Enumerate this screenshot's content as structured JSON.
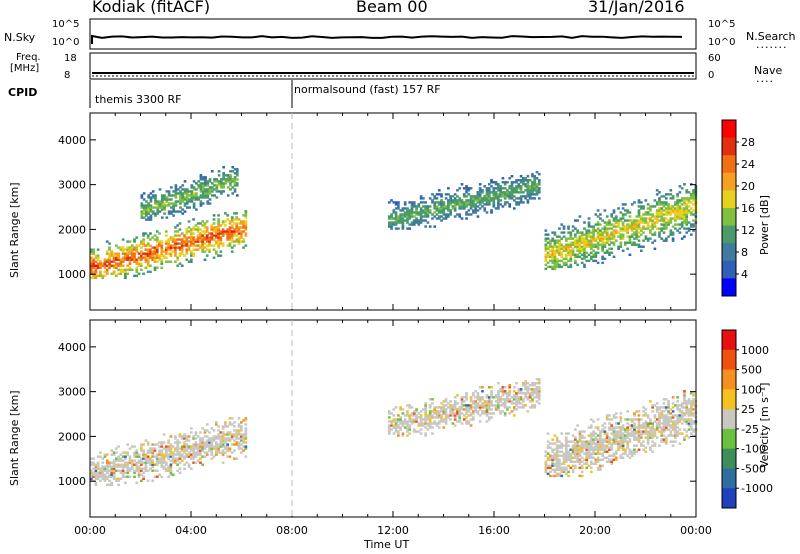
{
  "header": {
    "station": "Kodiak (fitACF)",
    "beam": "Beam 00",
    "date": "31/Jan/2016"
  },
  "top_strip": {
    "left_label": "N.Sky",
    "right_label": "N.Search",
    "left_ticks": [
      "10^5",
      "10^0"
    ],
    "right_ticks": [
      "10^5",
      "10^0"
    ]
  },
  "freq_strip": {
    "left_label_1": "Freq.",
    "left_label_2": "[MHz]",
    "right_label": "Nave",
    "left_ticks": [
      "18",
      "8"
    ],
    "right_ticks": [
      "60",
      "0"
    ]
  },
  "cpid_strip": {
    "label": "CPID",
    "modes": [
      "themis 3300 RF",
      "normalsound (fast) 157 RF"
    ]
  },
  "power_panel": {
    "ylabel": "Slant Range [km]",
    "colorbar_label": "Power [dB]",
    "colorbar_ticks": [
      "28",
      "24",
      "20",
      "16",
      "12",
      "8",
      "4"
    ],
    "colors": [
      "#0000ff",
      "#2f5fb7",
      "#3f7a9f",
      "#4a9a6a",
      "#7fc040",
      "#e8d020",
      "#f5a020",
      "#f07018",
      "#e03010",
      "#ff0000"
    ]
  },
  "velocity_panel": {
    "ylabel": "Slant Range [km]",
    "colorbar_label": "Velocity [m s⁻¹]",
    "colorbar_ticks": [
      "1000",
      "500",
      "100",
      "25",
      "-25",
      "-100",
      "-500",
      "-1000"
    ],
    "colors": [
      "#2040c0",
      "#2f6fa0",
      "#3c8f5a",
      "#6cc040",
      "#c8c8c0",
      "#f5c020",
      "#f59020",
      "#f05010",
      "#e81010"
    ]
  },
  "chart_data": {
    "type": "heatmap",
    "xlabel": "Time UT",
    "x_ticks": [
      "00:00",
      "04:00",
      "08:00",
      "12:00",
      "16:00",
      "20:00",
      "00:00"
    ],
    "y_ticks": [
      "1000",
      "2000",
      "3000",
      "4000"
    ],
    "xlim_hours": [
      0,
      24
    ],
    "ylim_km": [
      200,
      4600
    ],
    "mode_change_time_hours": 8.0,
    "power_features": [
      {
        "t_start": 0.0,
        "t_end": 6.2,
        "range_start_km": 900,
        "range_end_km": 2400,
        "peak_power_db": 28
      },
      {
        "t_start": 2.0,
        "t_end": 5.8,
        "range_start_km": 2200,
        "range_end_km": 3400,
        "peak_power_db": 16
      },
      {
        "t_start": 11.8,
        "t_end": 17.8,
        "range_start_km": 2000,
        "range_end_km": 3300,
        "peak_power_db": 14
      },
      {
        "t_start": 18.0,
        "t_end": 24.0,
        "range_start_km": 1100,
        "range_end_km": 3000,
        "peak_power_db": 20
      }
    ],
    "velocity_features": [
      {
        "t_start": 0.0,
        "t_end": 6.2,
        "range_start_km": 900,
        "range_end_km": 2400,
        "velocity_ms": 0
      },
      {
        "t_start": 11.8,
        "t_end": 17.8,
        "range_start_km": 2000,
        "range_end_km": 3300,
        "velocity_ms": 0
      },
      {
        "t_start": 18.0,
        "t_end": 24.0,
        "range_start_km": 1100,
        "range_end_km": 3000,
        "velocity_ms": -100
      }
    ]
  }
}
